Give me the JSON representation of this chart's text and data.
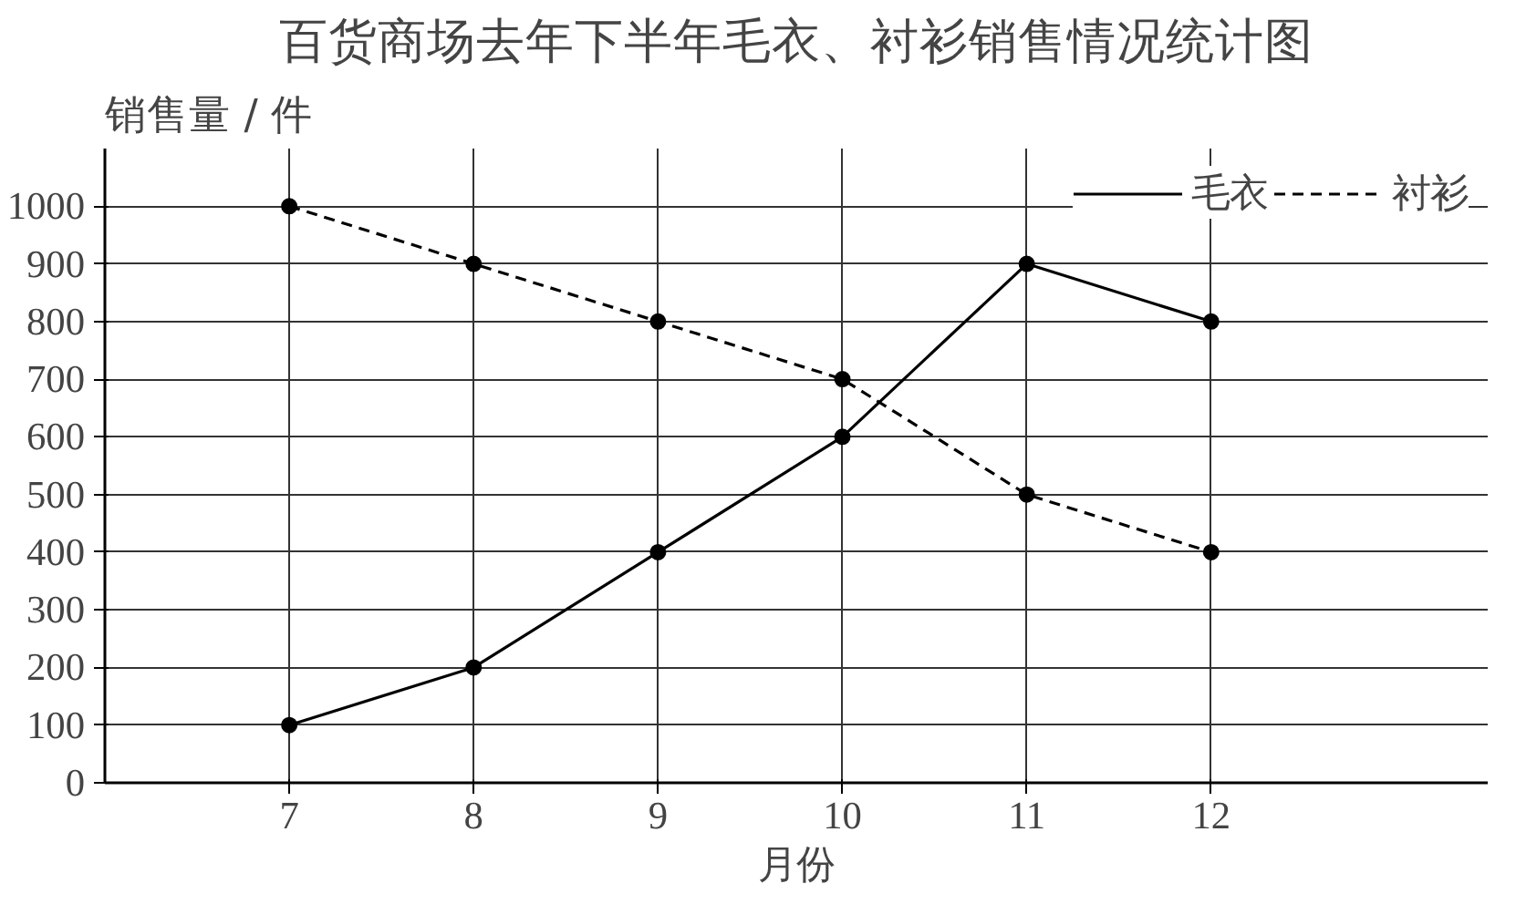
{
  "chart_data": {
    "type": "line",
    "title": "百货商场去年下半年毛衣、衬衫销售情况统计图",
    "ylabel": "销售量 / 件",
    "xlabel": "月份",
    "x": [
      7,
      8,
      9,
      10,
      11,
      12
    ],
    "series": [
      {
        "name": "毛衣",
        "color": "#000000",
        "values": [
          100,
          200,
          400,
          600,
          900,
          800
        ],
        "line_style": "solid"
      },
      {
        "name": "衬衫",
        "color": "#000000",
        "values": [
          1000,
          900,
          800,
          700,
          500,
          400
        ],
        "line_style": "dashed"
      }
    ],
    "xlim": [
      6,
      13.5
    ],
    "xticks": [
      7,
      8,
      9,
      10,
      11,
      12
    ],
    "ylim": [
      0,
      1100
    ],
    "yticks": [
      0,
      100,
      200,
      300,
      400,
      500,
      600,
      700,
      800,
      900,
      1000
    ],
    "grid": true,
    "legend": "top right",
    "marker": "circle"
  }
}
